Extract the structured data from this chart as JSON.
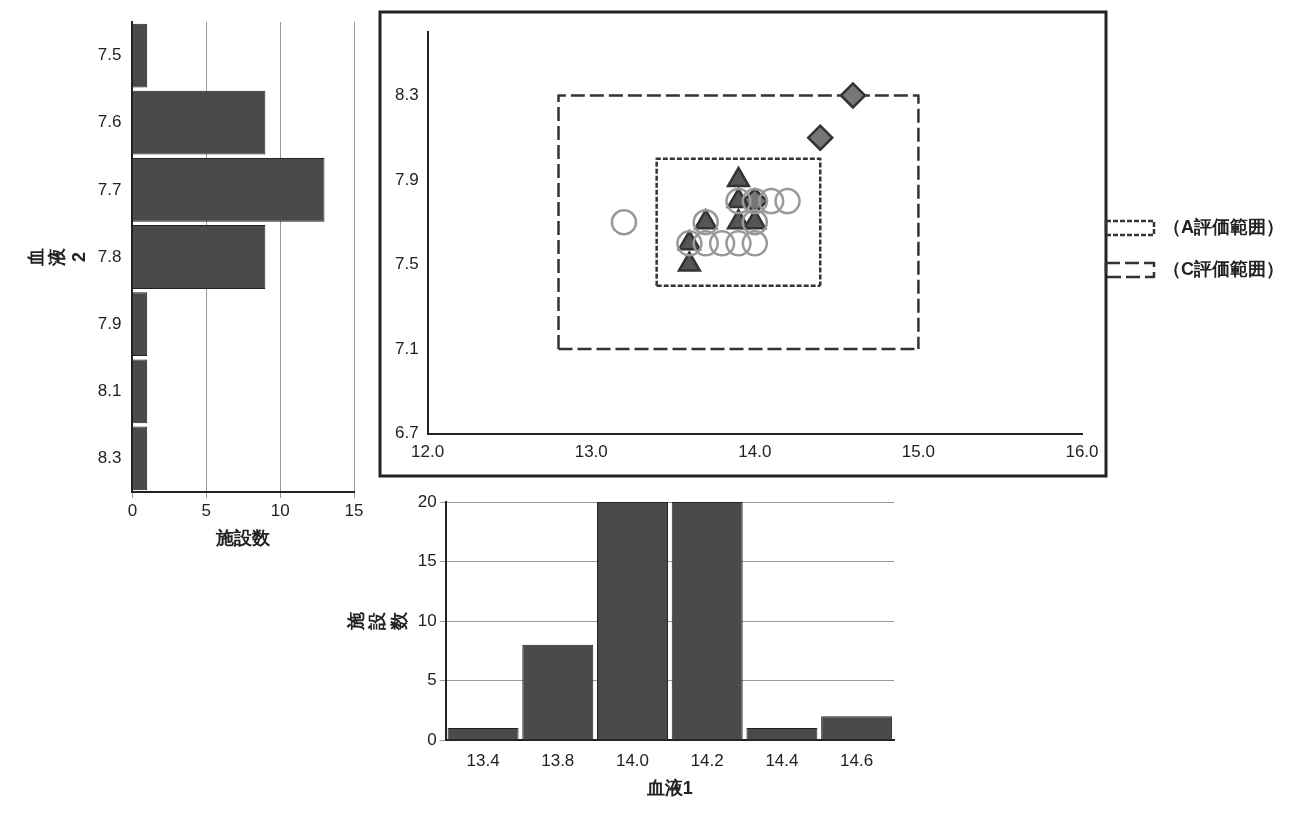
{
  "chart_data": [
    {
      "type": "bar",
      "orientation": "horizontal",
      "categories": [
        "7.5",
        "7.6",
        "7.7",
        "7.8",
        "7.9",
        "8.1",
        "8.3"
      ],
      "values": [
        1,
        9,
        13,
        9,
        1,
        1,
        1
      ],
      "color": "#4a4a4a",
      "xlim": [
        0,
        15
      ],
      "xticks": [
        0,
        5,
        10,
        15
      ],
      "xlabel": "施設数",
      "ylabel": "血液2",
      "grid": "x"
    },
    {
      "type": "scatter",
      "xlim": [
        12,
        16
      ],
      "xticks": [
        {
          "value": 12,
          "label": "12.0"
        },
        {
          "value": 13,
          "label": "13.0"
        },
        {
          "value": 14,
          "label": "14.0"
        },
        {
          "value": 15,
          "label": "15.0"
        },
        {
          "value": 16,
          "label": "16.0"
        }
      ],
      "ylim": [
        6.7,
        8.6
      ],
      "yticks": [
        6.7,
        7.1,
        7.5,
        7.9,
        8.3
      ],
      "grid": false,
      "series": [
        {
          "color": "#999999",
          "marker": "circle",
          "x": [
            13.2,
            13.6,
            13.7,
            13.8,
            13.9,
            14.0,
            13.7,
            14.0,
            13.9,
            14.0,
            14.1,
            14.2
          ],
          "values": [
            7.7,
            7.6,
            7.6,
            7.6,
            7.6,
            7.6,
            7.7,
            7.7,
            7.8,
            7.8,
            7.8,
            7.8
          ]
        },
        {
          "color": "#555555",
          "marker": "triangle",
          "x": [
            13.6,
            13.6,
            13.7,
            13.9,
            14.0,
            13.9,
            13.9
          ],
          "values": [
            7.5,
            7.6,
            7.7,
            7.7,
            7.7,
            7.9,
            7.8
          ]
        },
        {
          "color": "#777777",
          "marker": "diamond",
          "x": [
            14.6,
            14.4,
            14.0
          ],
          "values": [
            8.3,
            8.1,
            7.8
          ]
        },
        {
          "type": "line",
          "name": "（A評価範囲）",
          "color": "#333333",
          "line_style": "dotted",
          "marker": "none",
          "x": [
            13.4,
            13.4,
            14.4,
            14.4
          ],
          "values": [
            7.4,
            8.0,
            8.0,
            7.4
          ]
        },
        {
          "type": "line",
          "color": "#333333",
          "line_style": "dotted",
          "marker": "none",
          "x": [
            13.4,
            14.4
          ],
          "values": [
            7.4,
            7.4
          ]
        },
        {
          "type": "line",
          "name": "（C評価範囲）",
          "color": "#333333",
          "line_style": "dashed",
          "marker": "none",
          "x": [
            12.8,
            12.8,
            15.0,
            15.0
          ],
          "values": [
            7.1,
            8.3,
            8.3,
            7.1
          ]
        },
        {
          "type": "line",
          "color": "#333333",
          "line_style": "dashed",
          "marker": "none",
          "x": [
            12.8,
            15.0
          ],
          "values": [
            7.1,
            7.1
          ]
        }
      ],
      "legend": "right"
    },
    {
      "type": "bar",
      "categories": [
        "13.4",
        "13.8",
        "14.0",
        "14.2",
        "14.4",
        "14.6"
      ],
      "values": [
        1,
        8,
        20,
        20,
        1,
        2
      ],
      "color": "#4a4a4a",
      "ylim": [
        0,
        20
      ],
      "yticks": [
        0,
        5,
        10,
        15,
        20
      ],
      "xlabel": "血液1",
      "ylabel": "施設数",
      "grid": "y"
    }
  ]
}
